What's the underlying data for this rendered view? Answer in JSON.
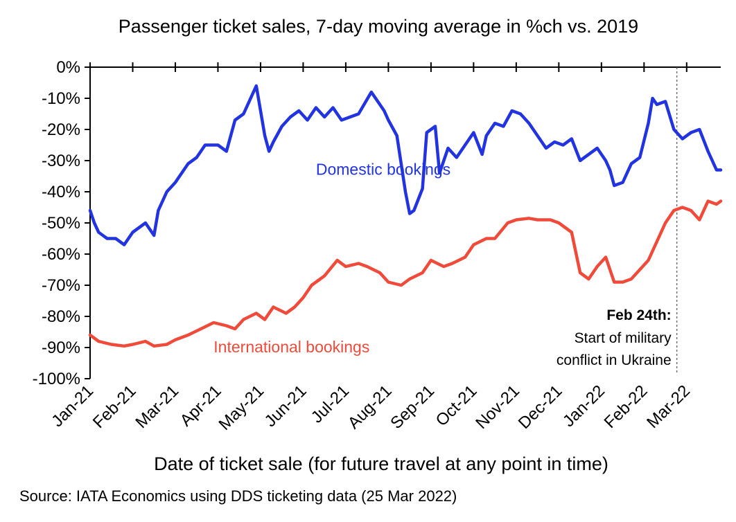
{
  "chart_data": {
    "type": "line",
    "title": "Passenger ticket sales, 7-day moving average in %ch vs. 2019",
    "xlabel": "Date of ticket sale (for future travel at any point in time)",
    "ylabel": "",
    "source": "Source: IATA Economics using DDS ticketing data (25 Mar 2022)",
    "ylim": [
      -100,
      0
    ],
    "y_ticks": [
      0,
      -10,
      -20,
      -30,
      -40,
      -50,
      -60,
      -70,
      -80,
      -90,
      -100
    ],
    "y_tick_labels": [
      "0%",
      "-10%",
      "-20%",
      "-30%",
      "-40%",
      "-50%",
      "-60%",
      "-70%",
      "-80%",
      "-90%",
      "-100%"
    ],
    "x_range": [
      0,
      14.8
    ],
    "x_ticks": [
      0,
      1,
      2,
      3,
      4,
      5,
      6,
      7,
      8,
      9,
      10,
      11,
      12,
      13,
      14
    ],
    "x_tick_labels": [
      "Jan-21",
      "Feb-21",
      "Mar-21",
      "Apr-21",
      "May-21",
      "Jun-21",
      "Jul-21",
      "Aug-21",
      "Sep-21",
      "Oct-21",
      "Nov-21",
      "Dec-21",
      "Jan-22",
      "Feb-22",
      "Mar-22"
    ],
    "grid": false,
    "legend": "inline labels",
    "series": [
      {
        "name": "Domestic bookings",
        "color": "#2233e0",
        "label_pos": [
          5.3,
          -34.5
        ],
        "x": [
          0,
          0.1,
          0.2,
          0.3,
          0.4,
          0.6,
          0.8,
          1.0,
          1.3,
          1.5,
          1.6,
          1.8,
          2.0,
          2.1,
          2.3,
          2.5,
          2.7,
          3.0,
          3.2,
          3.4,
          3.6,
          3.9,
          4.1,
          4.2,
          4.3,
          4.5,
          4.7,
          4.9,
          5.1,
          5.3,
          5.5,
          5.7,
          5.9,
          6.1,
          6.3,
          6.6,
          6.7,
          6.9,
          7.0,
          7.2,
          7.4,
          7.5,
          7.6,
          7.8,
          7.9,
          8.1,
          8.2,
          8.4,
          8.6,
          8.8,
          9.0,
          9.2,
          9.3,
          9.5,
          9.7,
          9.9,
          10.1,
          10.3,
          10.5,
          10.7,
          10.9,
          11.1,
          11.3,
          11.5,
          11.7,
          11.9,
          12.1,
          12.2,
          12.3,
          12.5,
          12.7,
          12.9,
          13.1,
          13.2,
          13.3,
          13.5,
          13.7,
          13.9,
          14.1,
          14.3,
          14.5,
          14.7,
          14.8
        ],
        "y": [
          -46,
          -50,
          -53,
          -54,
          -55,
          -55,
          -57,
          -53,
          -50,
          -54,
          -46,
          -40,
          -37,
          -35,
          -31,
          -29,
          -25,
          -25,
          -27,
          -17,
          -15,
          -6,
          -22,
          -27,
          -24,
          -19,
          -16,
          -14,
          -17,
          -13,
          -16,
          -13,
          -17,
          -16,
          -15,
          -8,
          -10,
          -14,
          -17,
          -22,
          -40,
          -47,
          -46,
          -39,
          -21,
          -19,
          -34,
          -26,
          -29,
          -25,
          -21,
          -28,
          -22,
          -18,
          -19,
          -14,
          -15,
          -18,
          -22,
          -26,
          -24,
          -25,
          -23,
          -30,
          -28,
          -26,
          -30,
          -33,
          -38,
          -37,
          -31,
          -29,
          -18,
          -10,
          -12,
          -11,
          -20,
          -23,
          -21,
          -20,
          -27,
          -33,
          -33
        ]
      },
      {
        "name": "International bookings",
        "color": "#ef4a3a",
        "label_pos": [
          2.9,
          -91.5
        ],
        "x": [
          0,
          0.2,
          0.5,
          0.8,
          1.0,
          1.3,
          1.5,
          1.8,
          2.0,
          2.3,
          2.6,
          2.9,
          3.2,
          3.4,
          3.6,
          3.9,
          4.1,
          4.3,
          4.6,
          4.8,
          5.0,
          5.2,
          5.5,
          5.8,
          6.0,
          6.3,
          6.5,
          6.8,
          7.0,
          7.3,
          7.5,
          7.8,
          8.0,
          8.3,
          8.5,
          8.8,
          9.0,
          9.3,
          9.5,
          9.8,
          10.0,
          10.3,
          10.5,
          10.8,
          11.0,
          11.3,
          11.5,
          11.7,
          11.9,
          12.1,
          12.3,
          12.5,
          12.7,
          12.9,
          13.1,
          13.3,
          13.5,
          13.7,
          13.9,
          14.1,
          14.3,
          14.5,
          14.7,
          14.8
        ],
        "y": [
          -86,
          -88,
          -89,
          -89.5,
          -89,
          -88,
          -89.5,
          -89,
          -87.5,
          -86,
          -84,
          -82,
          -83,
          -84,
          -81,
          -79,
          -81,
          -77,
          -79,
          -77,
          -74,
          -70,
          -67,
          -62,
          -64,
          -63,
          -64,
          -66,
          -69,
          -70,
          -68,
          -66,
          -62,
          -64,
          -63,
          -61,
          -57,
          -55,
          -55,
          -50,
          -49,
          -48.5,
          -49,
          -49,
          -50,
          -53,
          -66,
          -68,
          -64,
          -61,
          -69,
          -69,
          -68,
          -65,
          -62,
          -56,
          -50,
          -46,
          -45,
          -46,
          -49,
          -43,
          -44,
          -43
        ]
      }
    ],
    "annotations": [
      {
        "x": 13.77,
        "label_bold": "Feb 24th:",
        "lines": [
          "Start of military",
          "conflict in Ukraine"
        ]
      }
    ]
  }
}
